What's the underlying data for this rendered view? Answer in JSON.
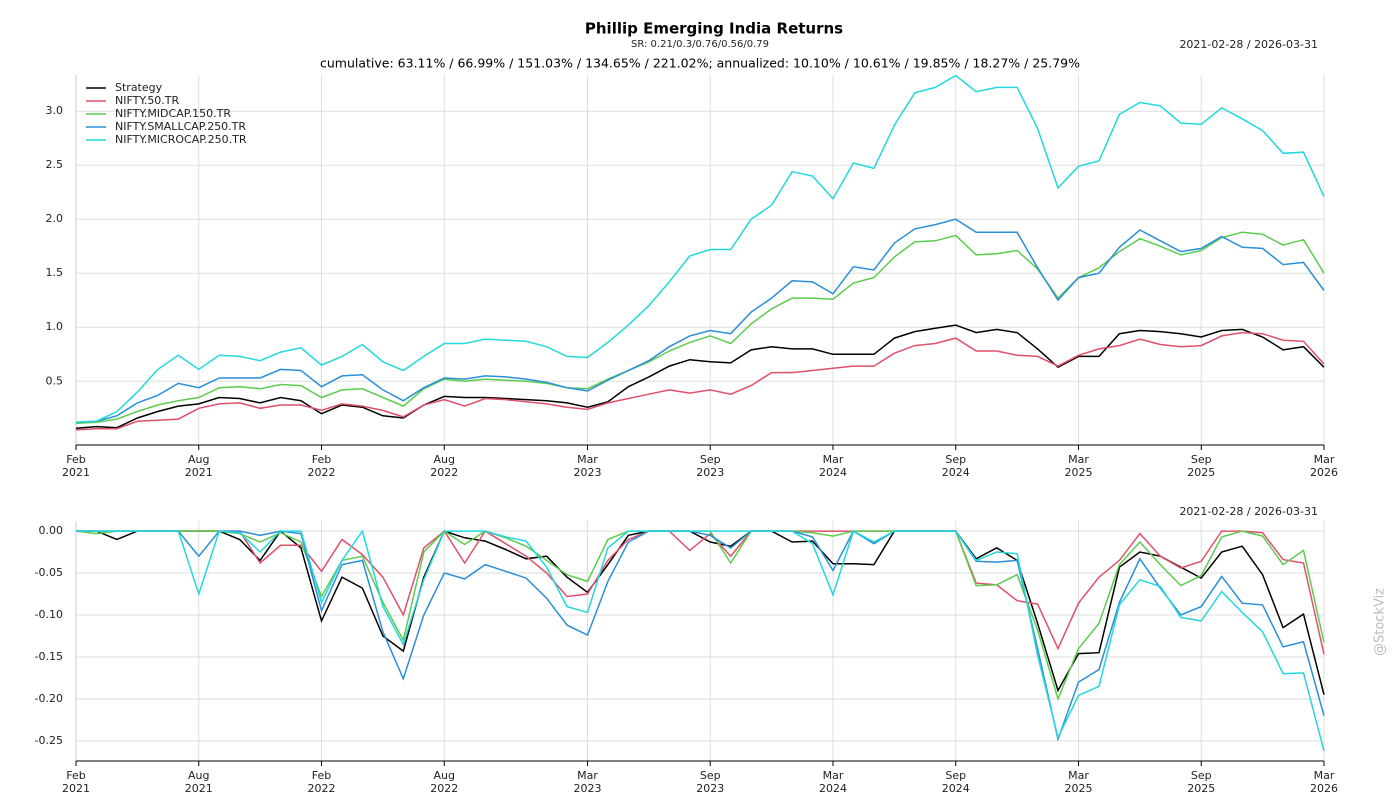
{
  "chart_data": [
    {
      "type": "line",
      "title": "Phillip Emerging India Returns",
      "subtitle": "SR: 0.21/0.3/0.76/0.56/0.79",
      "annotation": "cumulative: 63.11% / 66.99% / 151.03% / 134.65% / 221.02%; annualized: 10.10% / 10.61% / 19.85% / 18.27% / 25.79%",
      "date_range": "2021-02-28 / 2026-03-31",
      "legend": "upper left",
      "grid": true,
      "x": [
        "2021-02",
        "2021-03",
        "2021-04",
        "2021-05",
        "2021-06",
        "2021-07",
        "2021-08",
        "2021-09",
        "2021-10",
        "2021-11",
        "2021-12",
        "2022-01",
        "2022-02",
        "2022-03",
        "2022-04",
        "2022-05",
        "2022-06",
        "2022-07",
        "2022-08",
        "2022-09",
        "2022-10",
        "2022-11",
        "2022-12",
        "2023-01",
        "2023-02",
        "2023-03",
        "2023-04",
        "2023-05",
        "2023-06",
        "2023-07",
        "2023-08",
        "2023-09",
        "2023-10",
        "2023-11",
        "2023-12",
        "2024-01",
        "2024-02",
        "2024-03",
        "2024-04",
        "2024-05",
        "2024-06",
        "2024-07",
        "2024-08",
        "2024-09",
        "2024-10",
        "2024-11",
        "2024-12",
        "2025-01",
        "2025-02",
        "2025-03",
        "2025-04",
        "2025-05",
        "2025-06",
        "2025-07",
        "2025-08",
        "2025-09",
        "2025-10",
        "2025-11",
        "2025-12",
        "2026-01",
        "2026-02",
        "2026-03"
      ],
      "xlim": [
        "2021-02",
        "2026-03"
      ],
      "xticks": [
        {
          "value": "2021-02",
          "label": "Feb 2021"
        },
        {
          "value": "2021-08",
          "label": "Aug 2021"
        },
        {
          "value": "2022-02",
          "label": "Feb 2022"
        },
        {
          "value": "2022-08",
          "label": "Aug 2022"
        },
        {
          "value": "2023-03",
          "label": "Mar 2023"
        },
        {
          "value": "2023-09",
          "label": "Sep 2023"
        },
        {
          "value": "2024-03",
          "label": "Mar 2024"
        },
        {
          "value": "2024-09",
          "label": "Sep 2024"
        },
        {
          "value": "2025-03",
          "label": "Mar 2025"
        },
        {
          "value": "2025-09",
          "label": "Sep 2025"
        },
        {
          "value": "2026-03",
          "label": "Mar 2026"
        }
      ],
      "ylim": [
        -0.09,
        3.335
      ],
      "yticks": [
        0.5,
        {
          "value": 1,
          "label": "1.0"
        },
        1.5,
        {
          "value": 2,
          "label": "2.0"
        },
        2.5,
        {
          "value": 3,
          "label": "3.0"
        }
      ],
      "series": [
        {
          "name": "Strategy",
          "color": "#000000",
          "values": [
            0.065,
            0.08,
            0.07,
            0.16,
            0.22,
            0.27,
            0.29,
            0.35,
            0.34,
            0.3,
            0.35,
            0.32,
            0.2,
            0.28,
            0.26,
            0.18,
            0.16,
            0.28,
            0.36,
            0.35,
            0.35,
            0.34,
            0.33,
            0.32,
            0.3,
            0.26,
            0.31,
            0.45,
            0.54,
            0.64,
            0.7,
            0.68,
            0.67,
            0.79,
            0.82,
            0.8,
            0.8,
            0.75,
            0.75,
            0.75,
            0.9,
            0.96,
            0.99,
            1.02,
            0.95,
            0.98,
            0.95,
            0.8,
            0.63,
            0.73,
            0.73,
            0.94,
            0.97,
            0.96,
            0.94,
            0.91,
            0.97,
            0.98,
            0.91,
            0.79,
            0.82,
            0.63
          ]
        },
        {
          "name": "NIFTY.50.TR",
          "color": "#e0506a",
          "values": [
            0.05,
            0.06,
            0.06,
            0.13,
            0.14,
            0.15,
            0.25,
            0.29,
            0.3,
            0.25,
            0.28,
            0.28,
            0.23,
            0.29,
            0.27,
            0.23,
            0.17,
            0.28,
            0.33,
            0.27,
            0.34,
            0.33,
            0.31,
            0.29,
            0.26,
            0.24,
            0.3,
            0.34,
            0.38,
            0.42,
            0.39,
            0.42,
            0.38,
            0.46,
            0.58,
            0.58,
            0.6,
            0.62,
            0.64,
            0.64,
            0.76,
            0.83,
            0.85,
            0.9,
            0.78,
            0.78,
            0.74,
            0.73,
            0.64,
            0.74,
            0.8,
            0.83,
            0.89,
            0.84,
            0.82,
            0.83,
            0.92,
            0.95,
            0.94,
            0.88,
            0.87,
            0.66
          ]
        },
        {
          "name": "NIFTY.MIDCAP.150.TR",
          "color": "#5ccc4e",
          "values": [
            0.11,
            0.12,
            0.15,
            0.22,
            0.28,
            0.32,
            0.35,
            0.44,
            0.45,
            0.43,
            0.47,
            0.46,
            0.35,
            0.42,
            0.43,
            0.35,
            0.27,
            0.43,
            0.52,
            0.5,
            0.52,
            0.51,
            0.5,
            0.48,
            0.44,
            0.43,
            0.52,
            0.6,
            0.68,
            0.78,
            0.86,
            0.92,
            0.85,
            1.03,
            1.17,
            1.27,
            1.27,
            1.26,
            1.41,
            1.46,
            1.65,
            1.79,
            1.8,
            1.85,
            1.67,
            1.68,
            1.71,
            1.54,
            1.27,
            1.46,
            1.55,
            1.7,
            1.82,
            1.75,
            1.67,
            1.71,
            1.83,
            1.88,
            1.86,
            1.76,
            1.81,
            1.5
          ]
        },
        {
          "name": "NIFTY.SMALLCAP.250.TR",
          "color": "#2a8fd8",
          "values": [
            0.12,
            0.13,
            0.18,
            0.3,
            0.37,
            0.48,
            0.44,
            0.53,
            0.53,
            0.53,
            0.61,
            0.6,
            0.45,
            0.55,
            0.56,
            0.42,
            0.32,
            0.44,
            0.53,
            0.52,
            0.55,
            0.54,
            0.52,
            0.49,
            0.44,
            0.41,
            0.51,
            0.6,
            0.69,
            0.82,
            0.92,
            0.97,
            0.94,
            1.14,
            1.27,
            1.43,
            1.42,
            1.31,
            1.56,
            1.53,
            1.78,
            1.91,
            1.95,
            2.0,
            1.88,
            1.88,
            1.88,
            1.55,
            1.25,
            1.46,
            1.5,
            1.74,
            1.9,
            1.8,
            1.7,
            1.73,
            1.84,
            1.74,
            1.73,
            1.58,
            1.6,
            1.34
          ]
        },
        {
          "name": "NIFTY.MICROCAP.250.TR",
          "color": "#22d8de",
          "values": [
            0.12,
            0.13,
            0.22,
            0.4,
            0.61,
            0.74,
            0.61,
            0.74,
            0.73,
            0.69,
            0.77,
            0.81,
            0.65,
            0.73,
            0.84,
            0.68,
            0.6,
            0.73,
            0.85,
            0.85,
            0.89,
            0.88,
            0.87,
            0.82,
            0.73,
            0.72,
            0.86,
            1.02,
            1.2,
            1.42,
            1.66,
            1.72,
            1.72,
            2.0,
            2.13,
            2.44,
            2.4,
            2.19,
            2.52,
            2.47,
            2.87,
            3.17,
            3.22,
            3.33,
            3.18,
            3.22,
            3.22,
            2.84,
            2.29,
            2.49,
            2.54,
            2.97,
            3.08,
            3.05,
            2.89,
            2.88,
            3.03,
            2.93,
            2.82,
            2.61,
            2.62,
            2.21
          ]
        }
      ]
    },
    {
      "type": "line",
      "date_range": "2021-02-28 / 2026-03-31",
      "grid": true,
      "x": [
        "2021-02",
        "2021-03",
        "2021-04",
        "2021-05",
        "2021-06",
        "2021-07",
        "2021-08",
        "2021-09",
        "2021-10",
        "2021-11",
        "2021-12",
        "2022-01",
        "2022-02",
        "2022-03",
        "2022-04",
        "2022-05",
        "2022-06",
        "2022-07",
        "2022-08",
        "2022-09",
        "2022-10",
        "2022-11",
        "2022-12",
        "2023-01",
        "2023-02",
        "2023-03",
        "2023-04",
        "2023-05",
        "2023-06",
        "2023-07",
        "2023-08",
        "2023-09",
        "2023-10",
        "2023-11",
        "2023-12",
        "2024-01",
        "2024-02",
        "2024-03",
        "2024-04",
        "2024-05",
        "2024-06",
        "2024-07",
        "2024-08",
        "2024-09",
        "2024-10",
        "2024-11",
        "2024-12",
        "2025-01",
        "2025-02",
        "2025-03",
        "2025-04",
        "2025-05",
        "2025-06",
        "2025-07",
        "2025-08",
        "2025-09",
        "2025-10",
        "2025-11",
        "2025-12",
        "2026-01",
        "2026-02",
        "2026-03"
      ],
      "xlim": [
        "2021-02",
        "2026-03"
      ],
      "xticks": [
        {
          "value": "2021-02",
          "label": "Feb 2021"
        },
        {
          "value": "2021-08",
          "label": "Aug 2021"
        },
        {
          "value": "2022-02",
          "label": "Feb 2022"
        },
        {
          "value": "2022-08",
          "label": "Aug 2022"
        },
        {
          "value": "2023-03",
          "label": "Mar 2023"
        },
        {
          "value": "2023-09",
          "label": "Sep 2023"
        },
        {
          "value": "2024-03",
          "label": "Mar 2024"
        },
        {
          "value": "2024-09",
          "label": "Sep 2024"
        },
        {
          "value": "2025-03",
          "label": "Mar 2025"
        },
        {
          "value": "2025-09",
          "label": "Sep 2025"
        },
        {
          "value": "2026-03",
          "label": "Mar 2026"
        }
      ],
      "ylim": [
        -0.274,
        0.012
      ],
      "yticks": [
        {
          "value": -0.25,
          "label": "-0.25"
        },
        {
          "value": -0.2,
          "label": "-0.20"
        },
        {
          "value": -0.15,
          "label": "-0.15"
        },
        {
          "value": -0.1,
          "label": "-0.10"
        },
        {
          "value": -0.05,
          "label": "-0.05"
        },
        {
          "value": 0,
          "label": "0.00"
        }
      ],
      "series": [
        {
          "name": "Strategy",
          "color": "#000000",
          "values": [
            0,
            0,
            -0.01,
            0,
            0,
            0,
            0,
            0,
            -0.01,
            -0.035,
            0,
            -0.02,
            -0.107,
            -0.055,
            -0.068,
            -0.125,
            -0.143,
            -0.055,
            0,
            -0.008,
            -0.012,
            -0.022,
            -0.033,
            -0.03,
            -0.055,
            -0.073,
            -0.04,
            -0.005,
            0,
            0,
            0,
            -0.013,
            -0.018,
            0,
            0,
            -0.013,
            -0.012,
            -0.039,
            -0.039,
            -0.04,
            0,
            0,
            0,
            0,
            -0.033,
            -0.02,
            -0.035,
            -0.11,
            -0.19,
            -0.146,
            -0.145,
            -0.043,
            -0.025,
            -0.03,
            -0.043,
            -0.056,
            -0.025,
            -0.018,
            -0.052,
            -0.115,
            -0.099,
            -0.195
          ]
        },
        {
          "name": "NIFTY.50.TR",
          "color": "#e0506a",
          "values": [
            0,
            0,
            0,
            0,
            0,
            0,
            0,
            0,
            0,
            -0.038,
            -0.017,
            -0.017,
            -0.048,
            -0.01,
            -0.028,
            -0.055,
            -0.1,
            -0.02,
            0,
            -0.038,
            0,
            -0.015,
            -0.03,
            -0.05,
            -0.078,
            -0.075,
            -0.035,
            -0.01,
            0,
            0,
            -0.023,
            -0.003,
            -0.03,
            0,
            0,
            0,
            0,
            0,
            0,
            0,
            0,
            0,
            0,
            0,
            -0.062,
            -0.064,
            -0.083,
            -0.087,
            -0.14,
            -0.086,
            -0.055,
            -0.035,
            -0.003,
            -0.03,
            -0.044,
            -0.036,
            0,
            0,
            -0.002,
            -0.034,
            -0.038,
            -0.147
          ]
        },
        {
          "name": "NIFTY.MIDCAP.150.TR",
          "color": "#5ccc4e",
          "values": [
            0,
            -0.003,
            0,
            0,
            0,
            0,
            0,
            0,
            -0.003,
            -0.013,
            -0.002,
            -0.013,
            -0.078,
            -0.035,
            -0.03,
            -0.085,
            -0.13,
            -0.025,
            0,
            -0.016,
            0,
            -0.008,
            -0.018,
            -0.035,
            -0.052,
            -0.06,
            -0.01,
            0,
            0,
            0,
            0,
            0,
            -0.038,
            0,
            0,
            0,
            -0.002,
            -0.006,
            0,
            0,
            0,
            0,
            0,
            0,
            -0.065,
            -0.064,
            -0.052,
            -0.118,
            -0.2,
            -0.14,
            -0.11,
            -0.04,
            -0.013,
            -0.04,
            -0.065,
            -0.053,
            -0.007,
            0,
            -0.006,
            -0.04,
            -0.023,
            -0.133
          ]
        },
        {
          "name": "NIFTY.SMALLCAP.250.TR",
          "color": "#2a8fd8",
          "values": [
            0,
            0,
            0,
            0,
            0,
            0,
            -0.03,
            0,
            0,
            -0.005,
            0,
            -0.003,
            -0.095,
            -0.04,
            -0.035,
            -0.12,
            -0.176,
            -0.1,
            -0.05,
            -0.057,
            -0.04,
            -0.048,
            -0.056,
            -0.08,
            -0.112,
            -0.124,
            -0.06,
            -0.013,
            0,
            0,
            0,
            -0.005,
            -0.02,
            0,
            0,
            0,
            -0.007,
            -0.047,
            0,
            -0.015,
            0,
            0,
            0,
            0,
            -0.036,
            -0.037,
            -0.035,
            -0.14,
            -0.248,
            -0.18,
            -0.165,
            -0.085,
            -0.033,
            -0.068,
            -0.1,
            -0.09,
            -0.054,
            -0.086,
            -0.088,
            -0.138,
            -0.132,
            -0.22
          ]
        },
        {
          "name": "NIFTY.MICROCAP.250.TR",
          "color": "#22d8de",
          "values": [
            0,
            0,
            0,
            0,
            0,
            0,
            -0.075,
            0,
            -0.002,
            -0.025,
            0,
            0,
            -0.085,
            -0.035,
            0,
            -0.09,
            -0.135,
            -0.058,
            0,
            0,
            0,
            -0.007,
            -0.012,
            -0.043,
            -0.09,
            -0.097,
            -0.02,
            0,
            0,
            0,
            0,
            0,
            0,
            0,
            0,
            0,
            -0.015,
            -0.076,
            0,
            -0.013,
            0,
            0,
            0,
            0,
            -0.035,
            -0.025,
            -0.027,
            -0.148,
            -0.246,
            -0.196,
            -0.185,
            -0.088,
            -0.058,
            -0.066,
            -0.103,
            -0.107,
            -0.072,
            -0.097,
            -0.12,
            -0.17,
            -0.169,
            -0.262
          ]
        }
      ]
    }
  ],
  "watermark": "@StockViz"
}
